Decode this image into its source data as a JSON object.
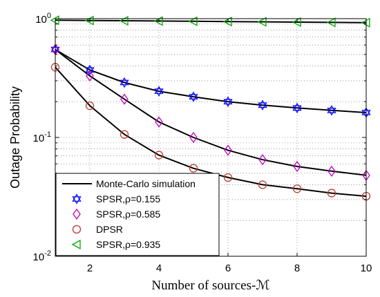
{
  "chart_data": {
    "type": "line",
    "xlabel": "Number of sources-ℳ",
    "ylabel": "Outage Probability",
    "xlim": [
      1,
      10
    ],
    "ylim": [
      0.01,
      1
    ],
    "yscale": "log",
    "grid": true,
    "legend_position": "bottom-left",
    "x_ticks": [
      2,
      4,
      6,
      8,
      10
    ],
    "y_ticks": [
      {
        "base": "10",
        "exp": "0",
        "value": 1
      },
      {
        "base": "10",
        "exp": "-1",
        "value": 0.1
      },
      {
        "base": "10",
        "exp": "-2",
        "value": 0.01
      }
    ],
    "x": [
      1,
      2,
      3,
      4,
      5,
      6,
      7,
      8,
      9,
      10
    ],
    "legend": [
      {
        "label": "Monte-Carlo simulation",
        "marker": "line",
        "color": "#000000"
      },
      {
        "label": "SPSR,ρ=0.155",
        "marker": "hexagram",
        "color": "#0000ff"
      },
      {
        "label": "SPSR,ρ=0.585",
        "marker": "diamond",
        "color": "#bf00bf"
      },
      {
        "label": "DPSR",
        "marker": "circle",
        "color": "#c0392b"
      },
      {
        "label": "SPSR,ρ=0.935",
        "marker": "triangle-left",
        "color": "#00aa00"
      }
    ],
    "series": [
      {
        "name": "SPSR,ρ=0.155",
        "marker": "hexagram",
        "color": "#0000ff",
        "values": [
          0.55,
          0.37,
          0.29,
          0.245,
          0.22,
          0.2,
          0.187,
          0.177,
          0.169,
          0.162
        ]
      },
      {
        "name": "SPSR,ρ=0.585",
        "marker": "diamond",
        "color": "#bf00bf",
        "values": [
          0.55,
          0.33,
          0.21,
          0.135,
          0.1,
          0.078,
          0.065,
          0.057,
          0.052,
          0.048
        ]
      },
      {
        "name": "DPSR",
        "marker": "circle",
        "color": "#c0392b",
        "values": [
          0.39,
          0.185,
          0.106,
          0.071,
          0.055,
          0.046,
          0.04,
          0.037,
          0.034,
          0.032
        ]
      },
      {
        "name": "SPSR,ρ=0.935",
        "marker": "triangle-left",
        "color": "#00aa00",
        "values": [
          0.97,
          0.965,
          0.96,
          0.955,
          0.95,
          0.945,
          0.94,
          0.935,
          0.93,
          0.925
        ]
      }
    ]
  }
}
